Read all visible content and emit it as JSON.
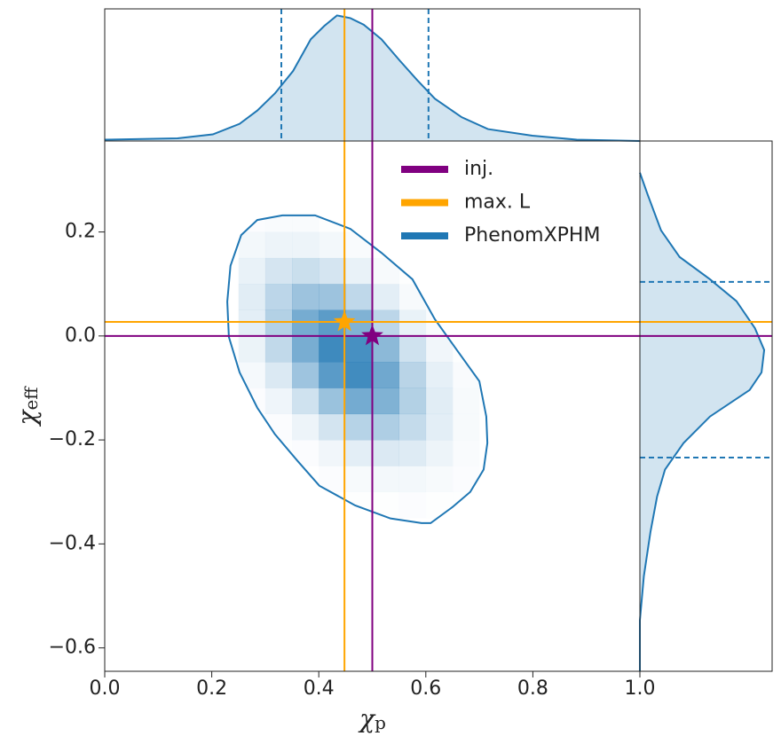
{
  "chart_data": {
    "type": "joint",
    "xlabel": {
      "symbol": "χ",
      "subscript": "p"
    },
    "ylabel": {
      "symbol": "χ",
      "subscript": "eff"
    },
    "xlim": [
      0,
      1
    ],
    "ylim": [
      -0.645,
      0.375
    ],
    "xticks": [
      {
        "value": 0,
        "label": "0.0"
      },
      {
        "value": 0.2,
        "label": "0.2"
      },
      {
        "value": 0.4,
        "label": "0.4"
      },
      {
        "value": 0.6,
        "label": "0.6"
      },
      {
        "value": 0.8,
        "label": "0.8"
      },
      {
        "value": 1,
        "label": "1.0"
      }
    ],
    "yticks": [
      {
        "value": -0.6,
        "label": "−0.6"
      },
      {
        "value": -0.4,
        "label": "−0.4"
      },
      {
        "value": -0.2,
        "label": "−0.2"
      },
      {
        "value": 0,
        "label": "0.0"
      },
      {
        "value": 0.2,
        "label": "0.2"
      }
    ],
    "marginal_lim": [
      0,
      1
    ],
    "legend": "upper right",
    "series": [
      {
        "name": "inj.",
        "color": "#800080",
        "x": 0.5,
        "y": 0.0
      },
      {
        "name": "max. L",
        "color": "#ffa500",
        "x": 0.448,
        "y": 0.027
      },
      {
        "name": "PhenomXPHM",
        "color": "#1f77b4",
        "density": {
          "x_edges": [
            0.25,
            0.3,
            0.35,
            0.4,
            0.45,
            0.5,
            0.55,
            0.6,
            0.65,
            0.7
          ],
          "y_edges": [
            -0.35,
            -0.3,
            -0.25,
            -0.2,
            -0.15,
            -0.1,
            -0.05,
            0.0,
            0.05,
            0.1,
            0.15,
            0.2,
            0.25
          ],
          "values": [
            [
              0,
              0,
              0,
              0,
              0.01,
              0.01,
              0.02,
              0.01,
              0.01
            ],
            [
              0,
              0,
              0,
              0.02,
              0.04,
              0.06,
              0.06,
              0.04,
              0.02
            ],
            [
              0,
              0.01,
              0.02,
              0.07,
              0.14,
              0.18,
              0.16,
              0.09,
              0.03
            ],
            [
              0,
              0.02,
              0.09,
              0.22,
              0.36,
              0.4,
              0.29,
              0.14,
              0.04
            ],
            [
              0.02,
              0.08,
              0.24,
              0.5,
              0.69,
              0.63,
              0.38,
              0.15,
              0.04
            ],
            [
              0.05,
              0.18,
              0.48,
              0.82,
              0.94,
              0.71,
              0.35,
              0.12,
              0.03
            ],
            [
              0.1,
              0.31,
              0.67,
              0.96,
              0.91,
              0.57,
              0.24,
              0.07,
              0.01
            ],
            [
              0.14,
              0.38,
              0.68,
              0.81,
              0.63,
              0.33,
              0.11,
              0.03,
              0
            ],
            [
              0.15,
              0.33,
              0.49,
              0.49,
              0.32,
              0.14,
              0.04,
              0.01,
              0
            ],
            [
              0.11,
              0.21,
              0.26,
              0.21,
              0.11,
              0.04,
              0.01,
              0,
              0
            ],
            [
              0.06,
              0.09,
              0.09,
              0.06,
              0.03,
              0.01,
              0,
              0,
              0
            ],
            [
              0.02,
              0.03,
              0.03,
              0.01,
              0.01,
              0,
              0,
              0,
              0
            ]
          ]
        },
        "contour": {
          "x": [
            0.332,
            0.393,
            0.459,
            0.517,
            0.575,
            0.617,
            0.658,
            0.7,
            0.713,
            0.715,
            0.708,
            0.683,
            0.65,
            0.609,
            0.592,
            0.534,
            0.468,
            0.401,
            0.36,
            0.318,
            0.285,
            0.252,
            0.232,
            0.229,
            0.235,
            0.255,
            0.285
          ],
          "y": [
            0.232,
            0.232,
            0.206,
            0.16,
            0.109,
            0.032,
            -0.027,
            -0.087,
            -0.155,
            -0.206,
            -0.257,
            -0.3,
            -0.329,
            -0.36,
            -0.36,
            -0.351,
            -0.326,
            -0.288,
            -0.24,
            -0.189,
            -0.138,
            -0.07,
            -0.002,
            0.066,
            0.135,
            0.194,
            0.223
          ]
        },
        "marginal_x": {
          "x": [
            0,
            0.136,
            0.202,
            0.252,
            0.285,
            0.318,
            0.352,
            0.385,
            0.41,
            0.434,
            0.459,
            0.484,
            0.517,
            0.551,
            0.584,
            0.617,
            0.667,
            0.716,
            0.799,
            0.882,
            1.0
          ],
          "density": [
            0.01,
            0.02,
            0.05,
            0.13,
            0.23,
            0.36,
            0.53,
            0.77,
            0.87,
            0.95,
            0.93,
            0.88,
            0.77,
            0.61,
            0.46,
            0.32,
            0.18,
            0.09,
            0.04,
            0.01,
            0
          ],
          "interval": [
            0.33,
            0.605
          ]
        },
        "marginal_y": {
          "y": [
            0.314,
            0.271,
            0.203,
            0.152,
            0.109,
            0.067,
            0.015,
            -0.027,
            -0.07,
            -0.104,
            -0.155,
            -0.206,
            -0.257,
            -0.309,
            -0.377,
            -0.462,
            -0.547,
            -0.645
          ],
          "density": [
            0,
            0.06,
            0.16,
            0.3,
            0.53,
            0.73,
            0.87,
            0.94,
            0.92,
            0.83,
            0.53,
            0.33,
            0.19,
            0.13,
            0.08,
            0.03,
            0,
            0
          ],
          "interval": [
            -0.234,
            0.104
          ]
        }
      }
    ]
  }
}
